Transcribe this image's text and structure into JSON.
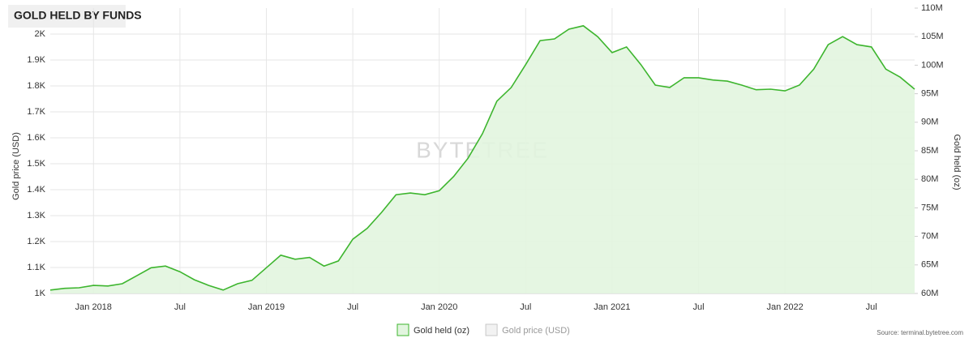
{
  "chart_data": {
    "type": "area",
    "title": "GOLD HELD BY FUNDS",
    "watermark": "BYTETREE",
    "source": "Source: terminal.bytetree.com",
    "y_label": "Gold price (USD)",
    "y2_label": "Gold held (oz)",
    "x": [
      "2017-10",
      "2017-11",
      "2017-12",
      "2018-01",
      "2018-02",
      "2018-03",
      "2018-04",
      "2018-05",
      "2018-06",
      "2018-07",
      "2018-08",
      "2018-09",
      "2018-10",
      "2018-11",
      "2018-12",
      "2019-01",
      "2019-02",
      "2019-03",
      "2019-04",
      "2019-05",
      "2019-06",
      "2019-07",
      "2019-08",
      "2019-09",
      "2019-10",
      "2019-11",
      "2019-12",
      "2020-01",
      "2020-02",
      "2020-03",
      "2020-04",
      "2020-05",
      "2020-06",
      "2020-07",
      "2020-08",
      "2020-09",
      "2020-10",
      "2020-11",
      "2020-12",
      "2021-01",
      "2021-02",
      "2021-03",
      "2021-04",
      "2021-05",
      "2021-06",
      "2021-07",
      "2021-08",
      "2021-09",
      "2021-10",
      "2021-11",
      "2021-12",
      "2022-01",
      "2022-02",
      "2022-03",
      "2022-04",
      "2022-05",
      "2022-06",
      "2022-07",
      "2022-08",
      "2022-09",
      "2022-10"
    ],
    "series": [
      {
        "name": "Gold held (oz)",
        "color": "#3db52e",
        "fill": "#e2f5df",
        "axis": "y2",
        "visible": true,
        "values": [
          60600000,
          60900000,
          61000000,
          61400000,
          61300000,
          61700000,
          63100000,
          64500000,
          64800000,
          63800000,
          62400000,
          61400000,
          60600000,
          61700000,
          62300000,
          64500000,
          66700000,
          66000000,
          66300000,
          64800000,
          65700000,
          69500000,
          71400000,
          74200000,
          77300000,
          77600000,
          77300000,
          78000000,
          80500000,
          83700000,
          88000000,
          93700000,
          96100000,
          100100000,
          104300000,
          104600000,
          106300000,
          106900000,
          105000000,
          102200000,
          103200000,
          100100000,
          96500000,
          96100000,
          97800000,
          97800000,
          97400000,
          97200000,
          96500000,
          95700000,
          95800000,
          95500000,
          96500000,
          99300000,
          103600000,
          105000000,
          103600000,
          103200000,
          99300000,
          97900000,
          95800000
        ]
      },
      {
        "name": "Gold price (USD)",
        "color": "#c8c8c8",
        "axis": "y",
        "visible": false
      }
    ],
    "xlim": [
      "2017-10",
      "2022-10"
    ],
    "xticks": [
      {
        "value": "2018-01",
        "label": "Jan 2018"
      },
      {
        "value": "2018-07",
        "label": "Jul"
      },
      {
        "value": "2019-01",
        "label": "Jan 2019"
      },
      {
        "value": "2019-07",
        "label": "Jul"
      },
      {
        "value": "2020-01",
        "label": "Jan 2020"
      },
      {
        "value": "2020-07",
        "label": "Jul"
      },
      {
        "value": "2021-01",
        "label": "Jan 2021"
      },
      {
        "value": "2021-07",
        "label": "Jul"
      },
      {
        "value": "2022-01",
        "label": "Jan 2022"
      },
      {
        "value": "2022-07",
        "label": "Jul"
      }
    ],
    "ylim": [
      1000,
      2100
    ],
    "yticks": [
      {
        "value": 1000,
        "label": "1K"
      },
      {
        "value": 1100,
        "label": "1.1K"
      },
      {
        "value": 1200,
        "label": "1.2K"
      },
      {
        "value": 1300,
        "label": "1.3K"
      },
      {
        "value": 1400,
        "label": "1.4K"
      },
      {
        "value": 1500,
        "label": "1.5K"
      },
      {
        "value": 1600,
        "label": "1.6K"
      },
      {
        "value": 1700,
        "label": "1.7K"
      },
      {
        "value": 1800,
        "label": "1.8K"
      },
      {
        "value": 1900,
        "label": "1.9K"
      },
      {
        "value": 2000,
        "label": "2K"
      }
    ],
    "y2lim": [
      60000000,
      110000000
    ],
    "y2ticks": [
      {
        "value": 60000000,
        "label": "60M"
      },
      {
        "value": 65000000,
        "label": "65M"
      },
      {
        "value": 70000000,
        "label": "70M"
      },
      {
        "value": 75000000,
        "label": "75M"
      },
      {
        "value": 80000000,
        "label": "80M"
      },
      {
        "value": 85000000,
        "label": "85M"
      },
      {
        "value": 90000000,
        "label": "90M"
      },
      {
        "value": 95000000,
        "label": "95M"
      },
      {
        "value": 100000000,
        "label": "100M"
      },
      {
        "value": 105000000,
        "label": "105M"
      },
      {
        "value": 110000000,
        "label": "110M"
      }
    ],
    "grid": true
  }
}
